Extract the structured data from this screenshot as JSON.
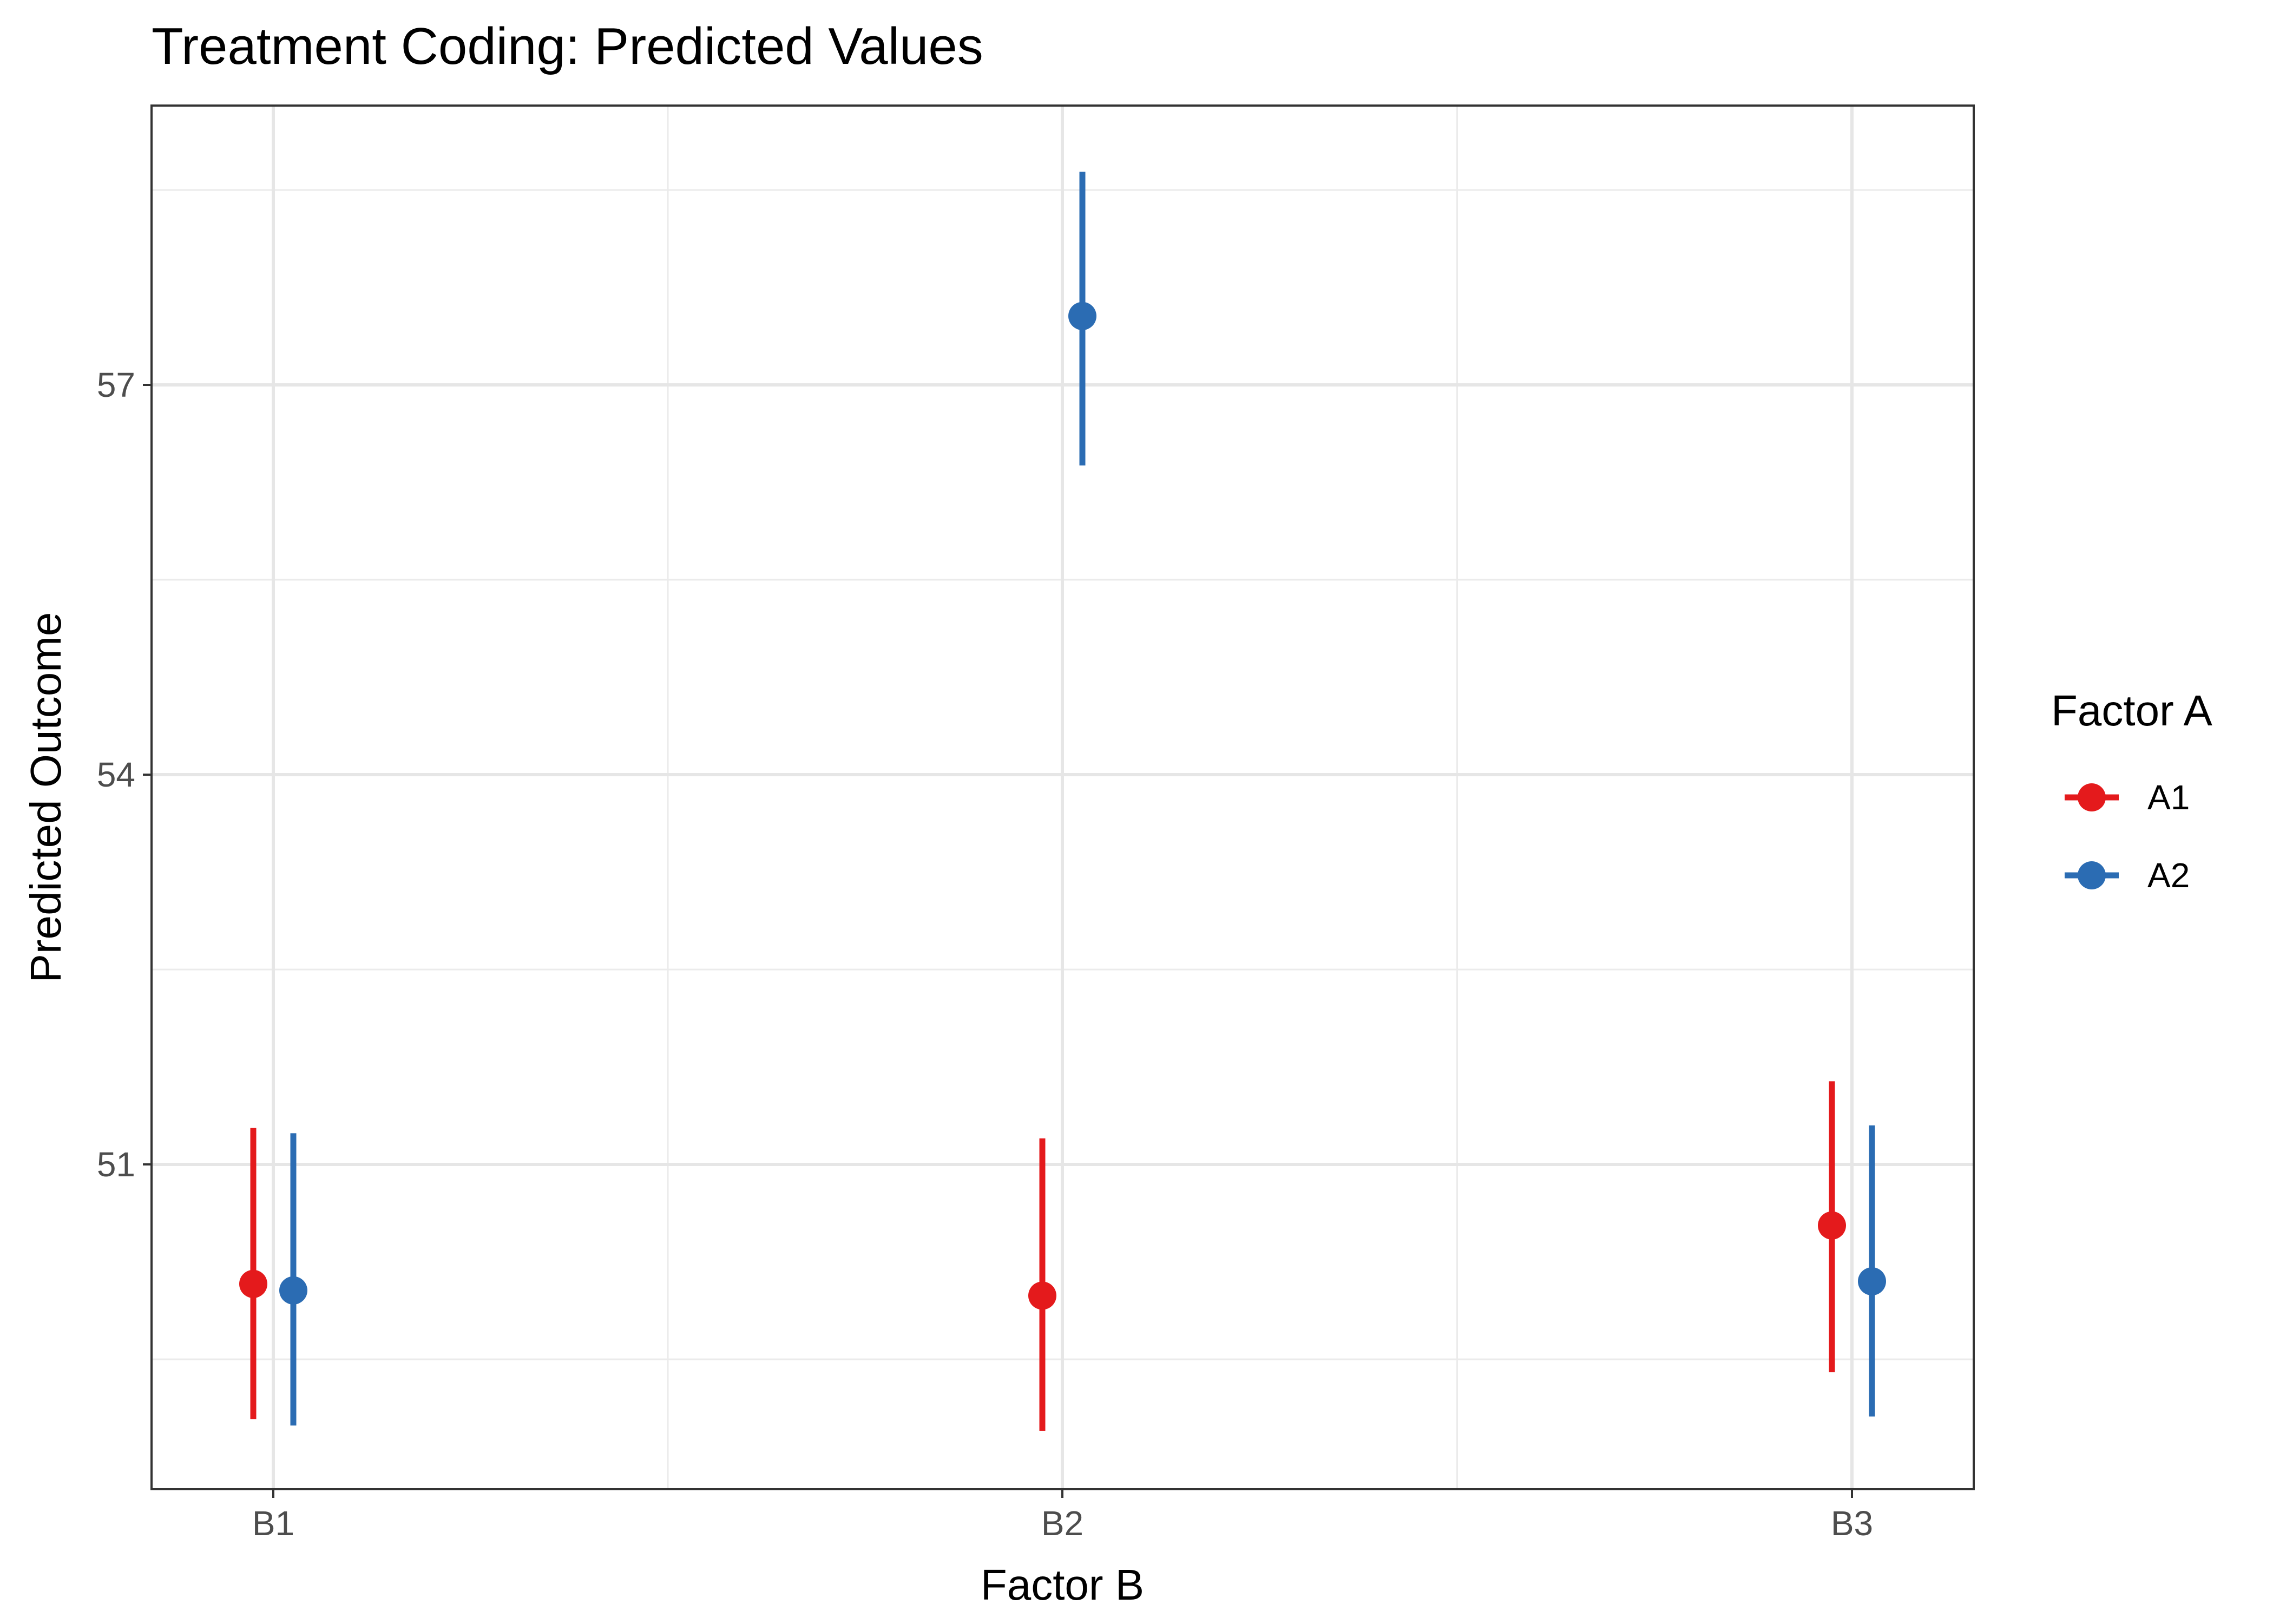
{
  "chart_data": {
    "type": "scatter",
    "subtype": "point-range",
    "title": "Treatment Coding: Predicted Values",
    "xlabel": "Factor B",
    "ylabel": "Predicted Outcome",
    "categories": [
      "B1",
      "B2",
      "B3"
    ],
    "ylim": [
      48.5,
      59.15
    ],
    "yticks": [
      51,
      54,
      57
    ],
    "grid": true,
    "legend": {
      "title": "Factor A",
      "position": "right"
    },
    "series": [
      {
        "name": "A1",
        "color": "#e41a1c",
        "points": [
          {
            "category": "B1",
            "y": 50.08,
            "ymin": 49.04,
            "ymax": 51.28
          },
          {
            "category": "B2",
            "y": 49.99,
            "ymin": 48.95,
            "ymax": 51.2
          },
          {
            "category": "B3",
            "y": 50.53,
            "ymin": 49.4,
            "ymax": 51.64
          }
        ]
      },
      {
        "name": "A2",
        "color": "#2b6cb3",
        "points": [
          {
            "category": "B1",
            "y": 50.03,
            "ymin": 48.99,
            "ymax": 51.24
          },
          {
            "category": "B2",
            "y": 57.53,
            "ymin": 56.38,
            "ymax": 58.64
          },
          {
            "category": "B3",
            "y": 50.1,
            "ymin": 49.06,
            "ymax": 51.3
          }
        ]
      }
    ]
  }
}
